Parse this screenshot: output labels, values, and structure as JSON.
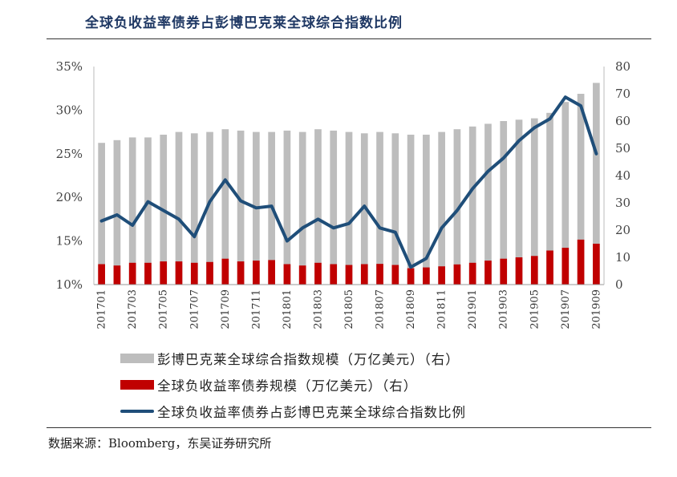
{
  "title": "全球负收益率债券占彭博巴克莱全球综合指数比例",
  "source": "数据来源：Bloomberg，东吴证券研究所",
  "colors": {
    "title": "#1f3864",
    "index": "#bdbdbd",
    "negative": "#c00000",
    "ratio": "#1f4e79"
  },
  "chart_data": {
    "type": "bar+line",
    "x": [
      "201701",
      "201702",
      "201703",
      "201704",
      "201705",
      "201706",
      "201707",
      "201708",
      "201709",
      "201710",
      "201711",
      "201712",
      "201801",
      "201802",
      "201803",
      "201804",
      "201805",
      "201806",
      "201807",
      "201808",
      "201809",
      "201810",
      "201811",
      "201812",
      "201901",
      "201902",
      "201903",
      "201904",
      "201905",
      "201906",
      "201907",
      "201908",
      "201909"
    ],
    "x_tick_labels": [
      "201701",
      "201703",
      "201705",
      "201707",
      "201709",
      "201711",
      "201801",
      "201803",
      "201805",
      "201807",
      "201809",
      "201811",
      "201901",
      "201903",
      "201905",
      "201907",
      "201909"
    ],
    "y_left": {
      "ticks": [
        "10%",
        "15%",
        "20%",
        "25%",
        "30%",
        "35%"
      ],
      "range": [
        10,
        35
      ]
    },
    "y_right": {
      "ticks": [
        "0",
        "10",
        "20",
        "30",
        "40",
        "50",
        "60",
        "70",
        "80"
      ],
      "range": [
        0,
        80
      ]
    },
    "series": [
      {
        "name": "彭博巴克莱全球综合指数规模（万亿美元）（右）",
        "type": "bar",
        "axis": "right",
        "color": "#bdbdbd",
        "values": [
          52,
          53,
          54,
          54,
          55,
          56,
          55.5,
          56,
          57,
          56.5,
          56,
          56,
          56.5,
          56,
          57,
          56.5,
          56,
          55.5,
          56,
          55.5,
          55,
          55,
          56,
          57,
          58,
          59,
          60,
          60.5,
          61,
          63,
          67,
          70,
          74
        ]
      },
      {
        "name": "全球负收益率债券规模（万亿美元）（右）",
        "type": "bar",
        "axis": "right",
        "color": "#c00000",
        "values": [
          7.5,
          7.0,
          8.0,
          8.0,
          8.5,
          8.5,
          8.0,
          8.3,
          9.5,
          8.5,
          8.8,
          9.0,
          7.5,
          7.0,
          8.0,
          7.5,
          7.2,
          7.5,
          7.6,
          7.2,
          6.0,
          6.3,
          6.7,
          7.4,
          8.0,
          8.8,
          9.5,
          10.0,
          10.5,
          12.5,
          13.5,
          16.5,
          15.0
        ]
      },
      {
        "name": "全球负收益率债券占彭博巴克莱全球综合指数比例",
        "type": "line",
        "axis": "left",
        "color": "#1f4e79",
        "values": [
          17.3,
          18.0,
          16.8,
          19.5,
          18.5,
          17.5,
          15.5,
          19.5,
          22.0,
          19.6,
          18.8,
          19.0,
          15.0,
          16.5,
          17.5,
          16.5,
          17.0,
          19.0,
          16.5,
          16.0,
          12.0,
          13.0,
          16.5,
          18.5,
          21.0,
          23.0,
          24.5,
          26.5,
          28.0,
          29.0,
          31.5,
          30.5,
          25.0
        ]
      }
    ],
    "legend": [
      "彭博巴克莱全球综合指数规模（万亿美元）（右）",
      "全球负收益率债券规模（万亿美元）（右）",
      "全球负收益率债券占彭博巴克莱全球综合指数比例"
    ],
    "legend_placement": "bottom",
    "grid": false
  }
}
